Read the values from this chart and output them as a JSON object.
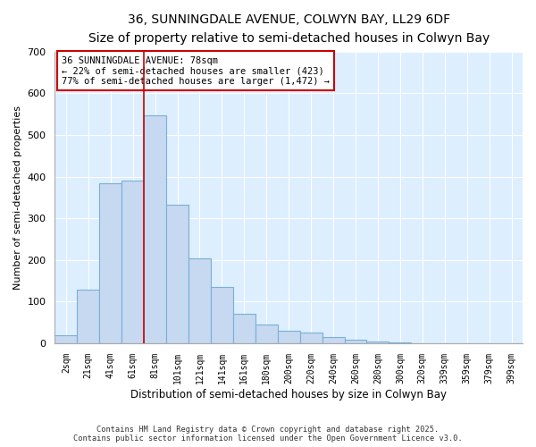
{
  "title": "36, SUNNINGDALE AVENUE, COLWYN BAY, LL29 6DF",
  "subtitle": "Size of property relative to semi-detached houses in Colwyn Bay",
  "xlabel": "Distribution of semi-detached houses by size in Colwyn Bay",
  "ylabel": "Number of semi-detached properties",
  "bar_labels": [
    "2sqm",
    "21sqm",
    "41sqm",
    "61sqm",
    "81sqm",
    "101sqm",
    "121sqm",
    "141sqm",
    "161sqm",
    "180sqm",
    "200sqm",
    "220sqm",
    "240sqm",
    "260sqm",
    "280sqm",
    "300sqm",
    "320sqm",
    "339sqm",
    "359sqm",
    "379sqm",
    "399sqm"
  ],
  "bar_values": [
    20,
    128,
    385,
    390,
    547,
    333,
    203,
    135,
    70,
    44,
    29,
    26,
    15,
    8,
    5,
    3,
    1,
    1,
    0,
    0,
    0
  ],
  "bar_color": "#c6d9f1",
  "bar_edge_color": "#7bafd4",
  "vline_index": 4,
  "vline_color": "#cc0000",
  "annotation_title": "36 SUNNINGDALE AVENUE: 78sqm",
  "annotation_line1": "← 22% of semi-detached houses are smaller (423)",
  "annotation_line2": "77% of semi-detached houses are larger (1,472) →",
  "annotation_box_color": "#ffffff",
  "annotation_border_color": "#cc0000",
  "footer1": "Contains HM Land Registry data © Crown copyright and database right 2025.",
  "footer2": "Contains public sector information licensed under the Open Government Licence v3.0.",
  "ylim": [
    0,
    700
  ],
  "yticks": [
    0,
    100,
    200,
    300,
    400,
    500,
    600,
    700
  ],
  "background_color": "#ffffff",
  "grid_color": "#ddeeff",
  "title_fontsize": 10,
  "subtitle_fontsize": 9
}
